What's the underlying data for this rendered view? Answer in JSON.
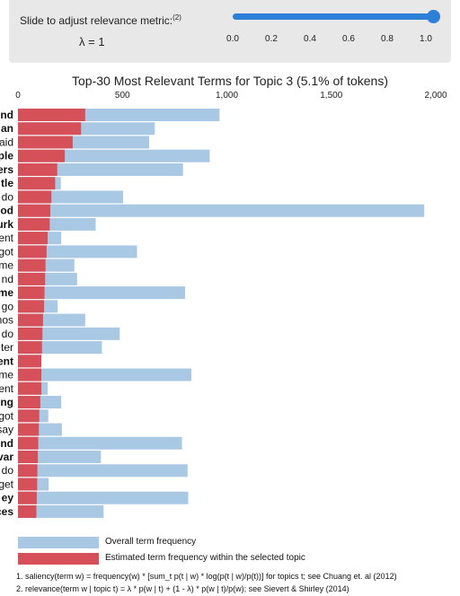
{
  "control": {
    "slider_label": "Slide to adjust relevance metric:",
    "slider_label_ref": "(2)",
    "lambda_text": "λ = 1",
    "lambda_value": 1.0,
    "tick_labels": [
      "0.0",
      "0.2",
      "0.4",
      "0.6",
      "0.8",
      "1.0"
    ],
    "accent_color": "#2d7fd8"
  },
  "chart_data": {
    "type": "bar",
    "orientation": "horizontal",
    "title": "Top-30 Most Relevant Terms for Topic 3 (5.1% of tokens)",
    "xlim": [
      0,
      2000
    ],
    "x_ticks": [
      0,
      500,
      1000,
      1500,
      2000
    ],
    "x_tick_labels": [
      "0",
      "500",
      "1,000",
      "1,500",
      "2,000"
    ],
    "categories": [
      "nd",
      "an",
      "aid",
      "ple",
      "ers",
      "tle",
      "do",
      "od",
      "urk",
      "ent",
      "got",
      "me",
      "nd",
      "me",
      "go",
      "nos",
      "do",
      "ter",
      "ent",
      "me",
      "ent",
      "ng",
      "got",
      "say",
      "nd",
      "var",
      "do",
      "get",
      "ey",
      "ces"
    ],
    "bold_categories": [
      "nd",
      "an",
      "ple",
      "ers",
      "tle",
      "od",
      "urk",
      "me",
      "ent",
      "ng",
      "nd",
      "var",
      "ey",
      "ces"
    ],
    "series": [
      {
        "name": "Overall term frequency",
        "color": "#a9c8e4",
        "values": [
          965,
          655,
          628,
          918,
          790,
          205,
          503,
          1945,
          372,
          207,
          570,
          270,
          283,
          800,
          190,
          322,
          487,
          402,
          112,
          830,
          142,
          207,
          145,
          210,
          785,
          397,
          812,
          147,
          815,
          410
        ]
      },
      {
        "name": "Estimated term frequency within the selected topic",
        "color": "#d6505a",
        "values": [
          322,
          302,
          262,
          224,
          188,
          178,
          160,
          155,
          152,
          142,
          137,
          132,
          130,
          127,
          125,
          120,
          117,
          115,
          112,
          112,
          112,
          107,
          102,
          100,
          97,
          95,
          93,
          92,
          90,
          88
        ]
      }
    ],
    "grid": false,
    "legend_position": "bottom-left"
  },
  "legend": [
    {
      "label": "Overall term frequency",
      "color": "#a9c8e4"
    },
    {
      "label": "Estimated term frequency within the selected topic",
      "color": "#d6505a"
    }
  ],
  "footnotes": [
    "1. saliency(term w) = frequency(w) * [sum_t p(t | w) * log(p(t | w)/p(t))] for topics t; see Chuang et. al (2012)",
    "2. relevance(term w | topic t) = λ * p(w | t) + (1 - λ) * p(w | t)/p(w); see Sievert & Shirley (2014)"
  ]
}
